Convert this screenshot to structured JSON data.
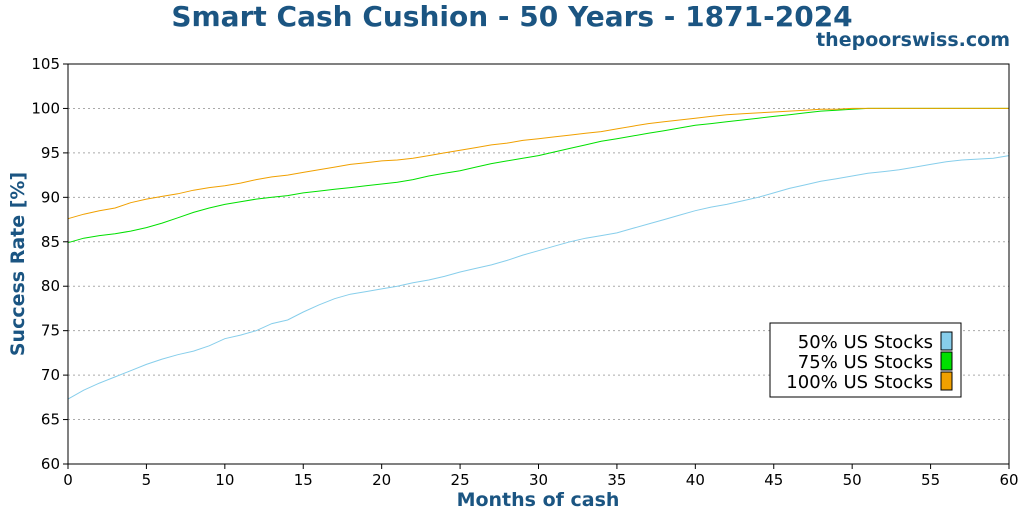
{
  "watermark": "thepoorswiss.com",
  "chart_data": {
    "type": "line",
    "title": "Smart Cash Cushion - 50 Years - 1871-2024",
    "xlabel": "Months of cash",
    "ylabel": "Success Rate [%]",
    "xlim": [
      0,
      60
    ],
    "ylim": [
      60,
      105
    ],
    "x_ticks": [
      "0",
      "5",
      "10",
      "15",
      "20",
      "25",
      "30",
      "35",
      "40",
      "45",
      "50",
      "55",
      "60"
    ],
    "y_ticks": [
      "60",
      "65",
      "70",
      "75",
      "80",
      "85",
      "90",
      "95",
      "100",
      "105"
    ],
    "grid": "horizontal-dotted",
    "legend_position": "lower-right",
    "x": [
      0,
      1,
      2,
      3,
      4,
      5,
      6,
      7,
      8,
      9,
      10,
      11,
      12,
      13,
      14,
      15,
      16,
      17,
      18,
      19,
      20,
      21,
      22,
      23,
      24,
      25,
      26,
      27,
      28,
      29,
      30,
      31,
      32,
      33,
      34,
      35,
      36,
      37,
      38,
      39,
      40,
      41,
      42,
      43,
      44,
      45,
      46,
      47,
      48,
      49,
      50,
      51,
      52,
      53,
      54,
      55,
      56,
      57,
      58,
      59,
      60
    ],
    "series": [
      {
        "name": "50% US Stocks",
        "color": "#87ceeb",
        "values": [
          67.3,
          68.3,
          69.1,
          69.8,
          70.5,
          71.2,
          71.8,
          72.3,
          72.7,
          73.3,
          74.1,
          74.5,
          75.0,
          75.8,
          76.2,
          77.1,
          77.9,
          78.6,
          79.1,
          79.4,
          79.7,
          80.0,
          80.4,
          80.7,
          81.1,
          81.6,
          82.0,
          82.4,
          82.9,
          83.5,
          84.0,
          84.5,
          85.0,
          85.4,
          85.7,
          86.0,
          86.5,
          87.0,
          87.5,
          88.0,
          88.5,
          88.9,
          89.2,
          89.6,
          90.0,
          90.5,
          91.0,
          91.4,
          91.8,
          92.1,
          92.4,
          92.7,
          92.9,
          93.1,
          93.4,
          93.7,
          94.0,
          94.2,
          94.3,
          94.4,
          94.7
        ]
      },
      {
        "name": "75% US Stocks",
        "color": "#00e000",
        "values": [
          84.9,
          85.4,
          85.7,
          85.9,
          86.2,
          86.6,
          87.1,
          87.7,
          88.3,
          88.8,
          89.2,
          89.5,
          89.8,
          90.0,
          90.2,
          90.5,
          90.7,
          90.9,
          91.1,
          91.3,
          91.5,
          91.7,
          92.0,
          92.4,
          92.7,
          93.0,
          93.4,
          93.8,
          94.1,
          94.4,
          94.7,
          95.1,
          95.5,
          95.9,
          96.3,
          96.6,
          96.9,
          97.2,
          97.5,
          97.8,
          98.1,
          98.3,
          98.5,
          98.7,
          98.9,
          99.1,
          99.3,
          99.5,
          99.7,
          99.8,
          99.9,
          100.0,
          100.0,
          100.0,
          100.0,
          100.0,
          100.0,
          100.0,
          100.0,
          100.0,
          100.0
        ]
      },
      {
        "name": "100% US Stocks",
        "color": "#f0a000",
        "values": [
          87.6,
          88.1,
          88.5,
          88.8,
          89.4,
          89.8,
          90.1,
          90.4,
          90.8,
          91.1,
          91.3,
          91.6,
          92.0,
          92.3,
          92.5,
          92.8,
          93.1,
          93.4,
          93.7,
          93.9,
          94.1,
          94.2,
          94.4,
          94.7,
          95.0,
          95.3,
          95.6,
          95.9,
          96.1,
          96.4,
          96.6,
          96.8,
          97.0,
          97.2,
          97.4,
          97.7,
          98.0,
          98.3,
          98.5,
          98.7,
          98.9,
          99.1,
          99.3,
          99.4,
          99.5,
          99.6,
          99.7,
          99.8,
          99.9,
          99.9,
          100.0,
          100.0,
          100.0,
          100.0,
          100.0,
          100.0,
          100.0,
          100.0,
          100.0,
          100.0,
          100.0
        ]
      }
    ]
  }
}
